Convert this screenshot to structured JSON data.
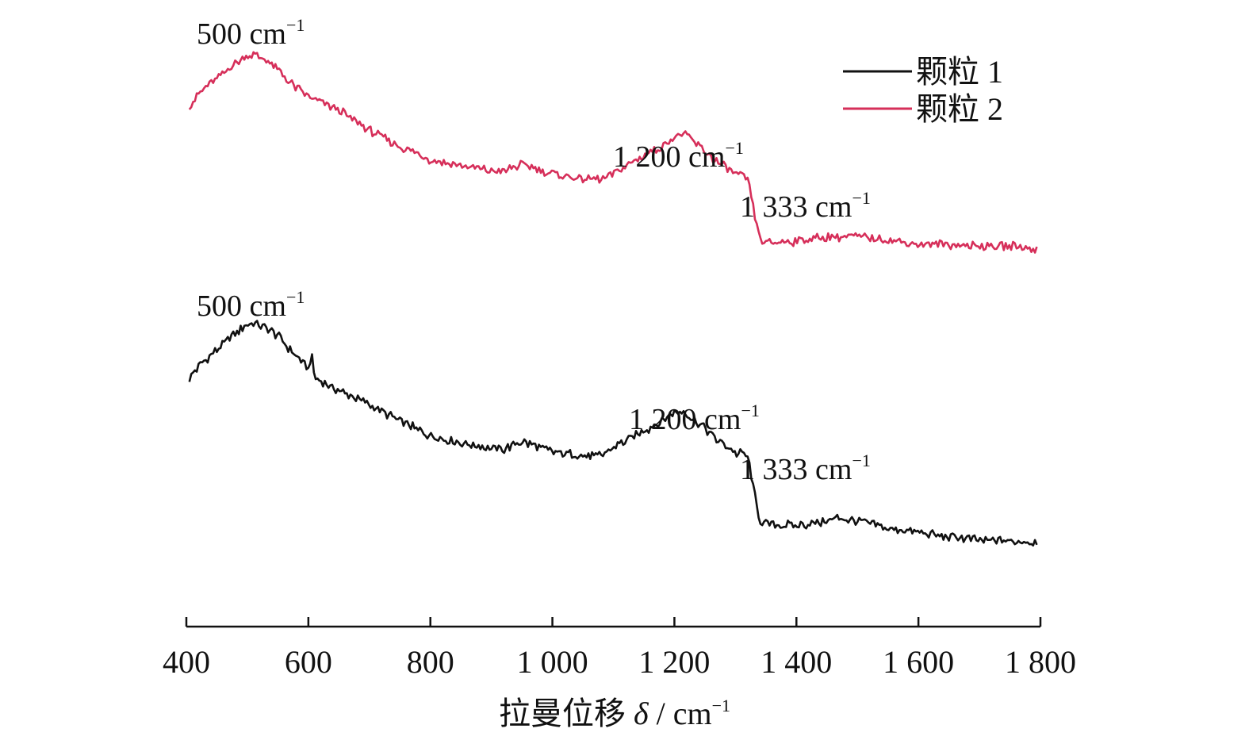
{
  "chart_data": {
    "type": "line",
    "title": "",
    "xlabel_main": "拉曼位移",
    "xlabel_symbol": "δ",
    "xlabel_unit": " / cm",
    "xlabel_unit_sup": "−1",
    "ylabel": "",
    "xlim": [
      400,
      1800
    ],
    "x_ticks": [
      400,
      600,
      800,
      1000,
      1200,
      1400,
      1600,
      1800
    ],
    "x_tick_labels": [
      "400",
      "600",
      "800",
      "1 000",
      "1 200",
      "1 400",
      "1 600",
      "1 800"
    ],
    "y_axis_shown": false,
    "grid": false,
    "legend_position": "top-right",
    "series": [
      {
        "name": "颗粒 1",
        "color": "#111111",
        "x": [
          405,
          420,
          440,
          460,
          480,
          495,
          510,
          530,
          550,
          570,
          590,
          600,
          605,
          610,
          625,
          650,
          700,
          750,
          800,
          850,
          900,
          920,
          950,
          1000,
          1050,
          1080,
          1100,
          1150,
          1180,
          1200,
          1215,
          1230,
          1250,
          1270,
          1290,
          1305,
          1315,
          1322,
          1330,
          1340,
          1350,
          1400,
          1450,
          1470,
          1500,
          1550,
          1600,
          1650,
          1700,
          1750,
          1795
        ],
        "y": [
          2.05,
          2.3,
          2.55,
          2.75,
          3.0,
          3.15,
          3.2,
          3.1,
          2.95,
          2.65,
          2.4,
          2.25,
          2.6,
          2.05,
          1.95,
          1.8,
          1.5,
          1.15,
          0.85,
          0.7,
          0.58,
          0.55,
          0.72,
          0.5,
          0.42,
          0.42,
          0.6,
          0.95,
          1.15,
          1.35,
          1.35,
          1.2,
          1.0,
          0.75,
          0.6,
          0.45,
          0.5,
          0.3,
          -0.3,
          -0.95,
          -1.0,
          -1.05,
          -0.95,
          -0.88,
          -0.95,
          -1.1,
          -1.2,
          -1.28,
          -1.35,
          -1.38,
          -1.38
        ]
      },
      {
        "name": "颗粒 2",
        "color": "#d62f5a",
        "x": [
          405,
          420,
          440,
          460,
          480,
          495,
          510,
          530,
          550,
          570,
          600,
          650,
          700,
          750,
          800,
          850,
          900,
          920,
          950,
          1000,
          1050,
          1080,
          1100,
          1150,
          1180,
          1200,
          1215,
          1230,
          1250,
          1270,
          1290,
          1305,
          1315,
          1322,
          1330,
          1340,
          1350,
          1400,
          1450,
          1500,
          1550,
          1600,
          1650,
          1700,
          1750,
          1795
        ],
        "y": [
          2.05,
          2.3,
          2.55,
          2.75,
          3.0,
          3.12,
          3.18,
          3.05,
          2.85,
          2.55,
          2.25,
          1.95,
          1.5,
          1.15,
          0.85,
          0.72,
          0.6,
          0.6,
          0.75,
          0.55,
          0.42,
          0.42,
          0.55,
          0.95,
          1.15,
          1.35,
          1.42,
          1.28,
          1.05,
          0.8,
          0.62,
          0.5,
          0.5,
          0.3,
          -0.25,
          -0.9,
          -0.98,
          -0.95,
          -0.85,
          -0.85,
          -0.92,
          -1.02,
          -1.02,
          -1.05,
          -1.05,
          -1.12
        ]
      }
    ],
    "annotations": [
      {
        "series": "颗粒 2",
        "num": "500 cm",
        "sup": "−1"
      },
      {
        "series": "颗粒 2",
        "num": "1 200 cm",
        "sup": "−1"
      },
      {
        "series": "颗粒 2",
        "num": "1 333 cm",
        "sup": "−1"
      },
      {
        "series": "颗粒 1",
        "num": "500 cm",
        "sup": "−1"
      },
      {
        "series": "颗粒 1",
        "num": "1 200 cm",
        "sup": "−1"
      },
      {
        "series": "颗粒 1",
        "num": "1 333 cm",
        "sup": "−1"
      }
    ]
  }
}
